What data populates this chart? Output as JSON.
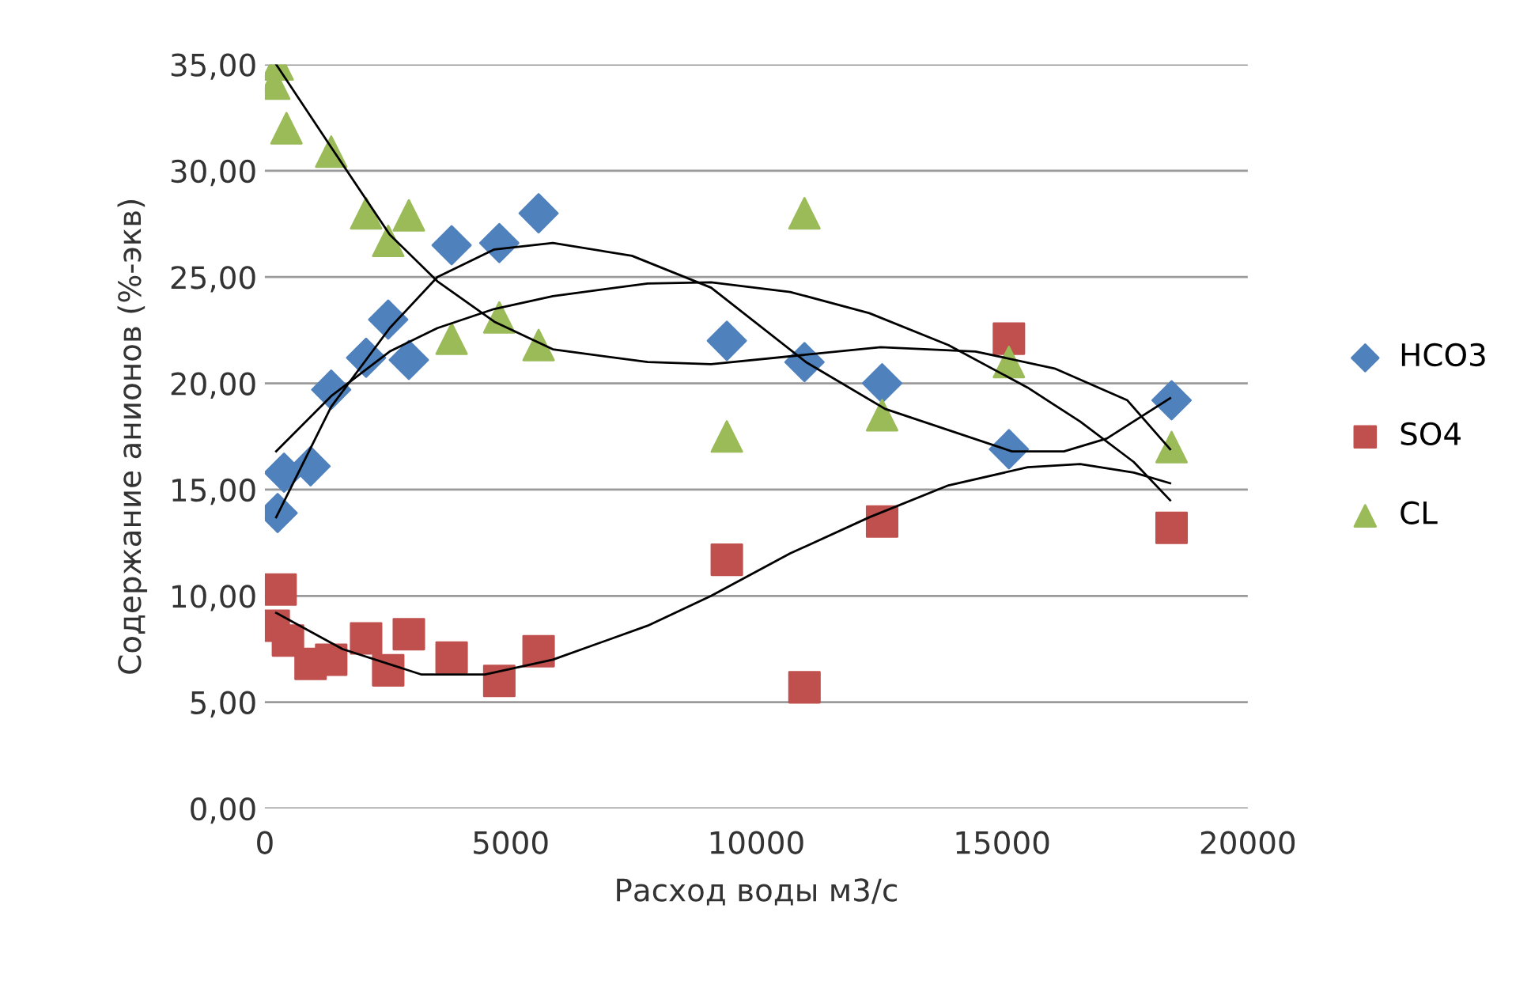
{
  "chart_data": {
    "type": "scatter",
    "xlabel": "Расход воды м3/с",
    "ylabel": "Содержание анионов (%-экв)",
    "xlim": [
      0,
      20000
    ],
    "xticks": [
      0,
      5000,
      10000,
      15000,
      20000
    ],
    "ylim": [
      0,
      35
    ],
    "yticks": [
      {
        "value": 0,
        "label": "0,00"
      },
      {
        "value": 5,
        "label": "5,00"
      },
      {
        "value": 10,
        "label": "10,00"
      },
      {
        "value": 15,
        "label": "15,00"
      },
      {
        "value": 20,
        "label": "20,00"
      },
      {
        "value": 25,
        "label": "25,00"
      },
      {
        "value": 30,
        "label": "30,00"
      },
      {
        "value": 35,
        "label": "35,00"
      }
    ],
    "grid": "y",
    "legend": "right",
    "series": [
      {
        "name": "HCO3",
        "marker": "diamond",
        "color": "#4f81bd",
        "x": [
          260,
          390,
          930,
          1350,
          2060,
          2510,
          2930,
          3800,
          4770,
          5570,
          9400,
          10980,
          12560,
          15140,
          18450
        ],
        "values": [
          13.9,
          15.8,
          16.1,
          19.7,
          21.2,
          23.0,
          21.1,
          26.5,
          26.6,
          28.0,
          22.0,
          21.0,
          20.0,
          16.9,
          19.2
        ]
      },
      {
        "name": "SO4",
        "marker": "square",
        "color": "#c0504d",
        "x": [
          180,
          320,
          470,
          930,
          1350,
          2060,
          2510,
          2930,
          3800,
          4770,
          5570,
          9400,
          10980,
          12560,
          15140,
          18450
        ],
        "values": [
          8.6,
          10.3,
          7.9,
          6.8,
          7.0,
          8.0,
          6.5,
          8.2,
          7.1,
          6.0,
          7.4,
          11.7,
          5.7,
          13.5,
          22.1,
          13.2
        ]
      },
      {
        "name": "CL",
        "marker": "triangle",
        "color": "#9bbb59",
        "x": [
          190,
          260,
          440,
          1350,
          2060,
          2510,
          2930,
          3800,
          4770,
          5570,
          9400,
          10980,
          12560,
          15140,
          18450
        ],
        "values": [
          34.1,
          35.0,
          32.0,
          30.9,
          28.0,
          26.7,
          27.9,
          22.1,
          23.1,
          21.8,
          17.5,
          28.0,
          18.5,
          21.0,
          17.0
        ]
      },
      {
        "type": "line",
        "marker": "none",
        "color": "#000000",
        "x": [
          230,
          1350,
          2540,
          3510,
          4670,
          5860,
          7470,
          9080,
          11010,
          12620,
          15200,
          16260,
          17130,
          18420
        ],
        "values": [
          13.7,
          18.9,
          22.6,
          25.0,
          26.3,
          26.6,
          26.0,
          24.5,
          21.0,
          18.8,
          16.8,
          16.8,
          17.4,
          19.3
        ]
      },
      {
        "type": "line",
        "marker": "none",
        "color": "#000000",
        "x": [
          230,
          1350,
          2540,
          3510,
          4670,
          5860,
          7790,
          9080,
          10690,
          12300,
          13910,
          15520,
          16590,
          17680,
          18420
        ],
        "values": [
          16.8,
          19.4,
          21.5,
          22.6,
          23.5,
          24.1,
          24.7,
          24.75,
          24.3,
          23.3,
          21.8,
          19.8,
          18.2,
          16.3,
          14.5
        ]
      },
      {
        "type": "line",
        "marker": "none",
        "color": "#000000",
        "x": [
          230,
          1350,
          2540,
          3510,
          4670,
          5860,
          7790,
          9080,
          12530,
          14460,
          16070,
          17550,
          18420
        ],
        "values": [
          35.0,
          31.1,
          27.0,
          24.8,
          22.9,
          21.6,
          21.0,
          20.9,
          21.7,
          21.5,
          20.7,
          19.2,
          16.9
        ]
      },
      {
        "type": "line",
        "marker": "none",
        "color": "#000000",
        "x": [
          230,
          1580,
          3190,
          4480,
          5860,
          7790,
          9080,
          10690,
          12300,
          13910,
          15520,
          16590,
          17680,
          18420
        ],
        "values": [
          9.2,
          7.5,
          6.3,
          6.3,
          7.0,
          8.6,
          10.0,
          12.0,
          13.7,
          15.2,
          16.05,
          16.2,
          15.8,
          15.3
        ]
      }
    ]
  }
}
